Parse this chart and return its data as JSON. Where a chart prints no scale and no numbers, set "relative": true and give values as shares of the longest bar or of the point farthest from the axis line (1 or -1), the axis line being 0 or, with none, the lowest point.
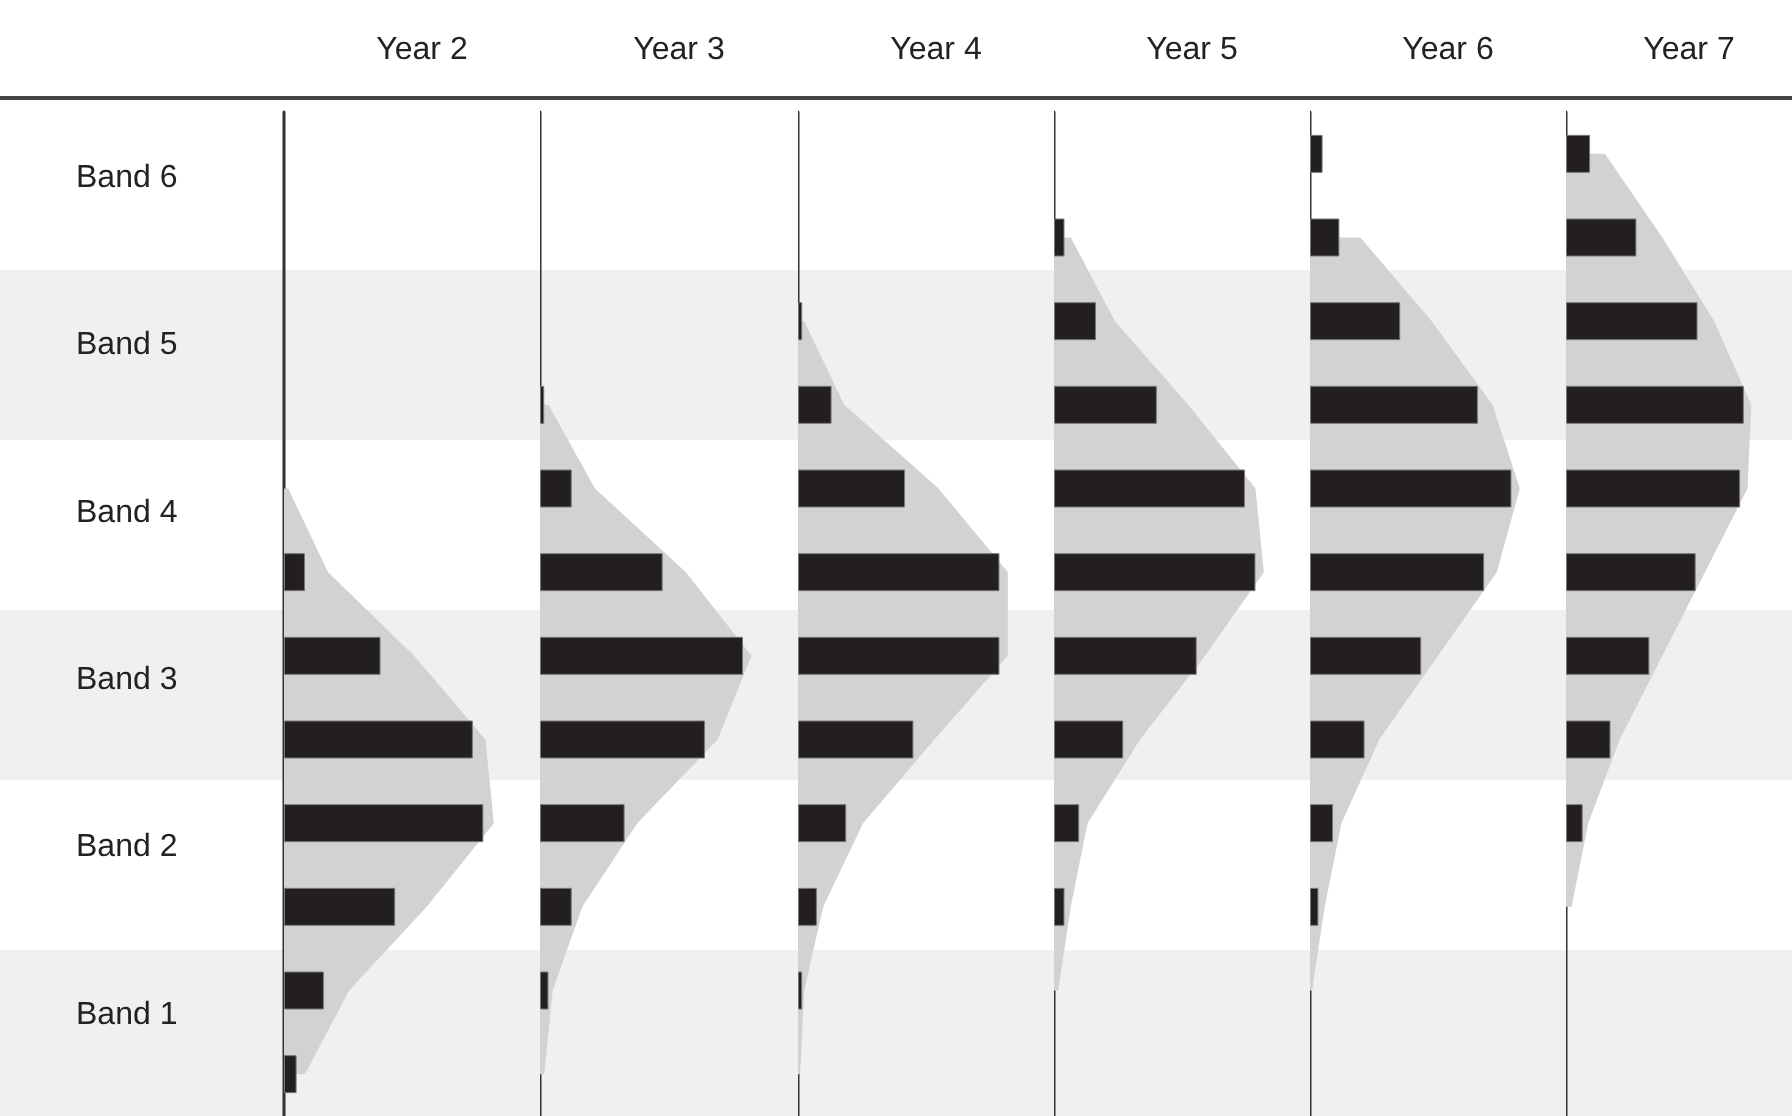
{
  "chart_data": [
    {
      "type": "bar",
      "orientation": "horizontal",
      "relative": true,
      "title": "Year 2",
      "tick_labels": "y",
      "categories": [
        "Band 6",
        null,
        "Band 5",
        null,
        "Band 4",
        null,
        "Band 3",
        null,
        "Band 2",
        null,
        "Band 1",
        null
      ],
      "series": [
        {
          "type": "area",
          "color": "#d1d2d4",
          "values": [
            null,
            null,
            null,
            null,
            0.02,
            0.21,
            0.62,
            0.96,
            1,
            0.68,
            0.31,
            0.1
          ]
        },
        {
          "type": "bar",
          "color": "#231f20",
          "values": [
            null,
            null,
            null,
            null,
            null,
            0.1,
            0.46,
            0.9,
            0.95,
            0.53,
            0.19,
            0.06
          ]
        }
      ]
    },
    {
      "type": "bar",
      "orientation": "horizontal",
      "relative": true,
      "title": "Year 3",
      "tick_labels": false,
      "categories": [
        null,
        null,
        null,
        null,
        null,
        null,
        null,
        null,
        null,
        null,
        null,
        null
      ],
      "series": [
        {
          "type": "area",
          "color": "#d1d2d4",
          "values": [
            null,
            null,
            null,
            0.04,
            0.26,
            0.69,
            1,
            0.84,
            0.46,
            0.2,
            0.06,
            0.02
          ]
        },
        {
          "type": "bar",
          "color": "#231f20",
          "values": [
            null,
            null,
            null,
            0.02,
            0.15,
            0.58,
            0.96,
            0.78,
            0.4,
            0.15,
            0.04,
            null
          ]
        }
      ]
    },
    {
      "type": "bar",
      "orientation": "horizontal",
      "relative": true,
      "title": "Year 4",
      "tick_labels": false,
      "categories": [
        null,
        null,
        null,
        null,
        null,
        null,
        null,
        null,
        null,
        null,
        null,
        null
      ],
      "series": [
        {
          "type": "area",
          "color": "#d1d2d4",
          "values": [
            null,
            null,
            0.03,
            0.22,
            0.67,
            1,
            1,
            0.65,
            0.31,
            0.12,
            0.03,
            0.01
          ]
        },
        {
          "type": "bar",
          "color": "#231f20",
          "values": [
            null,
            null,
            0.02,
            0.16,
            0.51,
            0.96,
            0.96,
            0.55,
            0.23,
            0.09,
            0.02,
            null
          ]
        }
      ]
    },
    {
      "type": "bar",
      "orientation": "horizontal",
      "relative": true,
      "title": "Year 5",
      "tick_labels": false,
      "categories": [
        null,
        null,
        null,
        null,
        null,
        null,
        null,
        null,
        null,
        null,
        null,
        null
      ],
      "series": [
        {
          "type": "area",
          "color": "#d1d2d4",
          "values": [
            null,
            0.08,
            0.29,
            0.64,
            0.96,
            1,
            0.72,
            0.41,
            0.16,
            0.08,
            0.02,
            null
          ]
        },
        {
          "type": "bar",
          "color": "#231f20",
          "values": [
            null,
            0.05,
            0.2,
            0.49,
            0.91,
            0.96,
            0.68,
            0.33,
            0.12,
            0.05,
            null,
            null
          ]
        }
      ]
    },
    {
      "type": "bar",
      "orientation": "horizontal",
      "relative": true,
      "title": "Year 6",
      "tick_labels": false,
      "categories": [
        null,
        null,
        null,
        null,
        null,
        null,
        null,
        null,
        null,
        null,
        null,
        null
      ],
      "series": [
        {
          "type": "area",
          "color": "#d1d2d4",
          "values": [
            null,
            0.24,
            0.58,
            0.87,
            1,
            0.89,
            0.61,
            0.33,
            0.15,
            0.07,
            0.01,
            null
          ]
        },
        {
          "type": "bar",
          "color": "#231f20",
          "values": [
            0.06,
            0.14,
            0.43,
            0.8,
            0.96,
            0.83,
            0.53,
            0.26,
            0.11,
            0.04,
            null,
            null
          ]
        }
      ]
    },
    {
      "type": "bar",
      "orientation": "horizontal",
      "relative": true,
      "title": "Year 7",
      "tick_labels": false,
      "categories": [
        null,
        null,
        null,
        null,
        null,
        null,
        null,
        null,
        null,
        null,
        null,
        null
      ],
      "series": [
        {
          "type": "area",
          "color": "#d1d2d4",
          "values": [
            0.21,
            0.52,
            0.8,
            1,
            0.98,
            0.75,
            0.52,
            0.29,
            0.12,
            0.03,
            null,
            null
          ]
        },
        {
          "type": "bar",
          "color": "#231f20",
          "values": [
            0.13,
            0.38,
            0.71,
            0.96,
            0.94,
            0.7,
            0.45,
            0.24,
            0.09,
            null,
            null,
            null
          ]
        }
      ]
    }
  ]
}
